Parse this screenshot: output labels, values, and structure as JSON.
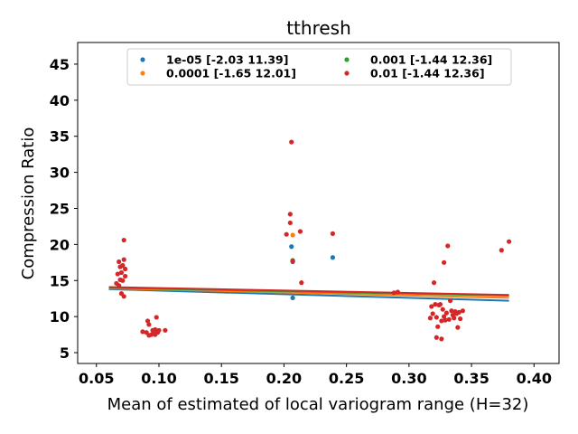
{
  "chart_data": {
    "type": "scatter",
    "title": "tthresh",
    "xlabel": "Mean of estimated of local variogram range (H=32)",
    "ylabel": "Compression Ratio",
    "xlim": [
      0.035,
      0.42
    ],
    "ylim": [
      3.5,
      48
    ],
    "xticks": [
      0.05,
      0.1,
      0.15,
      0.2,
      0.25,
      0.3,
      0.35,
      0.4
    ],
    "xtick_labels": [
      "0.05",
      "0.10",
      "0.15",
      "0.20",
      "0.25",
      "0.30",
      "0.35",
      "0.40"
    ],
    "yticks": [
      5,
      10,
      15,
      20,
      25,
      30,
      35,
      40,
      45
    ],
    "ytick_labels": [
      "5",
      "10",
      "15",
      "20",
      "25",
      "30",
      "35",
      "40",
      "45"
    ],
    "grid": false,
    "legend_position": "top-center",
    "series": [
      {
        "name": "1e-05 [-2.03 11.39]",
        "color": "#1f77b4",
        "points": [
          [
            0.206,
            19.7
          ],
          [
            0.207,
            17.6
          ],
          [
            0.207,
            12.6
          ],
          [
            0.239,
            18.2
          ]
        ],
        "fit": [
          [
            0.06,
            13.8
          ],
          [
            0.38,
            12.2
          ]
        ]
      },
      {
        "name": "0.0001 [-1.65 12.01]",
        "color": "#ff7f0e",
        "points": [
          [
            0.207,
            21.3
          ]
        ],
        "fit": [
          [
            0.06,
            13.9
          ],
          [
            0.38,
            12.6
          ]
        ]
      },
      {
        "name": "0.001 [-1.44 12.36]",
        "color": "#2ca02c",
        "points": [
          [
            0.207,
            17.8
          ]
        ],
        "fit": [
          [
            0.06,
            14.0
          ],
          [
            0.38,
            12.9
          ]
        ]
      },
      {
        "name": "0.01 [-1.44 12.36]",
        "color": "#d62728",
        "points": [
          [
            0.066,
            14.6
          ],
          [
            0.067,
            15.9
          ],
          [
            0.068,
            17.6
          ],
          [
            0.068,
            14.3
          ],
          [
            0.069,
            15.1
          ],
          [
            0.069,
            16.9
          ],
          [
            0.07,
            16.1
          ],
          [
            0.07,
            13.2
          ],
          [
            0.071,
            17.1
          ],
          [
            0.071,
            15.0
          ],
          [
            0.072,
            17.9
          ],
          [
            0.072,
            20.6
          ],
          [
            0.072,
            12.8
          ],
          [
            0.073,
            16.6
          ],
          [
            0.073,
            15.6
          ],
          [
            0.087,
            7.9
          ],
          [
            0.09,
            7.8
          ],
          [
            0.091,
            9.4
          ],
          [
            0.092,
            7.4
          ],
          [
            0.092,
            8.9
          ],
          [
            0.094,
            7.5
          ],
          [
            0.095,
            8.1
          ],
          [
            0.096,
            7.9
          ],
          [
            0.097,
            7.5
          ],
          [
            0.097,
            8.2
          ],
          [
            0.098,
            9.9
          ],
          [
            0.099,
            7.8
          ],
          [
            0.1,
            8.1
          ],
          [
            0.105,
            8.1
          ],
          [
            0.202,
            21.4
          ],
          [
            0.205,
            23.0
          ],
          [
            0.205,
            24.2
          ],
          [
            0.206,
            34.2
          ],
          [
            0.207,
            17.7
          ],
          [
            0.213,
            21.8
          ],
          [
            0.214,
            14.7
          ],
          [
            0.239,
            21.5
          ],
          [
            0.288,
            13.3
          ],
          [
            0.291,
            13.4
          ],
          [
            0.317,
            9.8
          ],
          [
            0.318,
            11.4
          ],
          [
            0.319,
            10.4
          ],
          [
            0.32,
            14.7
          ],
          [
            0.321,
            11.7
          ],
          [
            0.322,
            9.9
          ],
          [
            0.322,
            7.1
          ],
          [
            0.323,
            8.6
          ],
          [
            0.324,
            11.6
          ],
          [
            0.325,
            11.7
          ],
          [
            0.326,
            6.9
          ],
          [
            0.326,
            9.4
          ],
          [
            0.327,
            11.0
          ],
          [
            0.328,
            10.0
          ],
          [
            0.328,
            17.5
          ],
          [
            0.329,
            9.5
          ],
          [
            0.33,
            10.5
          ],
          [
            0.331,
            19.8
          ],
          [
            0.332,
            9.6
          ],
          [
            0.333,
            12.2
          ],
          [
            0.334,
            10.8
          ],
          [
            0.335,
            10.2
          ],
          [
            0.336,
            9.8
          ],
          [
            0.337,
            10.7
          ],
          [
            0.338,
            10.4
          ],
          [
            0.339,
            8.5
          ],
          [
            0.34,
            10.6
          ],
          [
            0.341,
            9.7
          ],
          [
            0.343,
            10.8
          ],
          [
            0.374,
            19.2
          ],
          [
            0.38,
            20.4
          ]
        ],
        "fit": [
          [
            0.06,
            14.1
          ],
          [
            0.38,
            13.0
          ]
        ]
      }
    ]
  }
}
